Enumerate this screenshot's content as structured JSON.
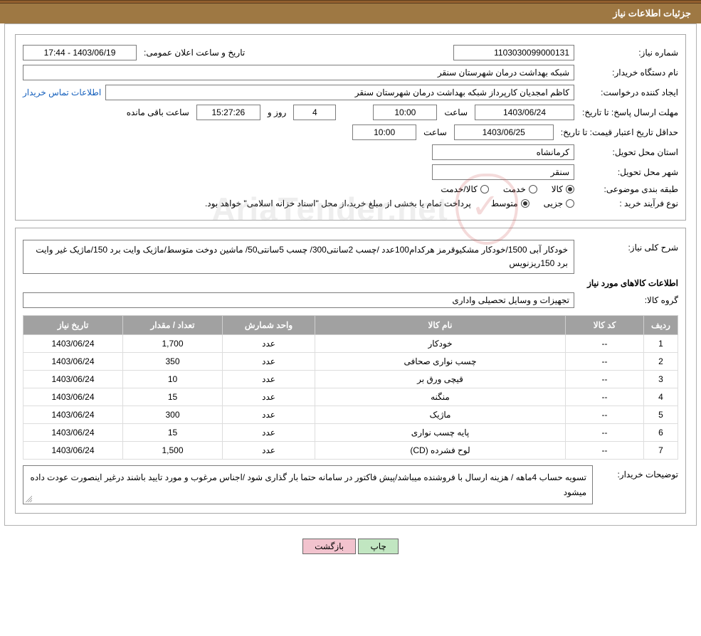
{
  "header": {
    "title": "جزئیات اطلاعات نیاز"
  },
  "labels": {
    "need_no": "شماره نیاز:",
    "announce": "تاریخ و ساعت اعلان عمومی:",
    "buyer_org": "نام دستگاه خریدار:",
    "requester": "ایجاد کننده درخواست:",
    "contact_link": "اطلاعات تماس خریدار",
    "reply_deadline": "مهلت ارسال پاسخ:  تا تاریخ:",
    "time": "ساعت",
    "days_and": "روز و",
    "remaining": "ساعت باقی مانده",
    "price_validity": "حداقل تاریخ اعتبار قیمت: تا تاریخ:",
    "delivery_province": "استان محل تحویل:",
    "delivery_city": "شهر محل تحویل:",
    "subject_class": "طبقه بندی موضوعی:",
    "goods": "کالا",
    "service": "خدمت",
    "goods_service": "کالا/خدمت",
    "purchase_type": "نوع فرآیند خرید :",
    "partial": "جزیی",
    "medium": "متوسط",
    "payment_note": "پرداخت تمام یا بخشی از مبلغ خرید،از محل \"اسناد خزانه اسلامی\" خواهد بود.",
    "need_desc": "شرح کلی نیاز:",
    "items_title": "اطلاعات کالاهای مورد نیاز",
    "goods_group": "گروه کالا:",
    "buyer_notes": "توضیحات خریدار:"
  },
  "fields": {
    "need_no": "1103030099000131",
    "announce_datetime": "1403/06/19 - 17:44",
    "buyer_org": "شبکه بهداشت درمان شهرستان سنقر",
    "requester": "کاظم امجدیان کارپرداز شبکه بهداشت درمان شهرستان سنقر",
    "reply_date": "1403/06/24",
    "reply_time": "10:00",
    "days_left": "4",
    "time_left": "15:27:26",
    "price_valid_date": "1403/06/25",
    "price_valid_time": "10:00",
    "province": "کرمانشاه",
    "city": "سنقر",
    "need_desc": "خودکار آبی 1500/خودکار مشکیوقرمز هرکدام100عدد /چسب 2سانتی300/ چسب 5سانتی50/ ماشین دوخت متوسط/ماژیک وایت برد 150/ماژیک غیر وایت برد 150ریزنویس",
    "goods_group": "تجهیزات و وسایل تحصیلی واداری",
    "buyer_notes": "تسویه حساب 4ماهه / هزینه ارسال با فروشنده میباشد/پیش فاکتور در سامانه حتما بار گذاری شود /اجناس مرغوب و مورد تایید باشند درغیر اینصورت عودت داده میشود"
  },
  "radios": {
    "subject_class_selected": 0,
    "purchase_type_selected": 1
  },
  "table": {
    "headers": {
      "row": "ردیف",
      "code": "کد کالا",
      "name": "نام کالا",
      "unit": "واحد شمارش",
      "qty": "تعداد / مقدار",
      "date": "تاریخ نیاز"
    },
    "rows": [
      {
        "row": "1",
        "code": "--",
        "name": "خودکار",
        "unit": "عدد",
        "qty": "1,700",
        "date": "1403/06/24"
      },
      {
        "row": "2",
        "code": "--",
        "name": "چسب نواری صحافی",
        "unit": "عدد",
        "qty": "350",
        "date": "1403/06/24"
      },
      {
        "row": "3",
        "code": "--",
        "name": "قیچی ورق بر",
        "unit": "عدد",
        "qty": "10",
        "date": "1403/06/24"
      },
      {
        "row": "4",
        "code": "--",
        "name": "منگنه",
        "unit": "عدد",
        "qty": "15",
        "date": "1403/06/24"
      },
      {
        "row": "5",
        "code": "--",
        "name": "ماژیک",
        "unit": "عدد",
        "qty": "300",
        "date": "1403/06/24"
      },
      {
        "row": "6",
        "code": "--",
        "name": "پایه چسب نواری",
        "unit": "عدد",
        "qty": "15",
        "date": "1403/06/24"
      },
      {
        "row": "7",
        "code": "--",
        "name": "لوح فشرده (CD)",
        "unit": "عدد",
        "qty": "1,500",
        "date": "1403/06/24"
      }
    ]
  },
  "buttons": {
    "print": "چاپ",
    "back": "بازگشت"
  },
  "watermark": {
    "text": "AriaTender.net"
  }
}
